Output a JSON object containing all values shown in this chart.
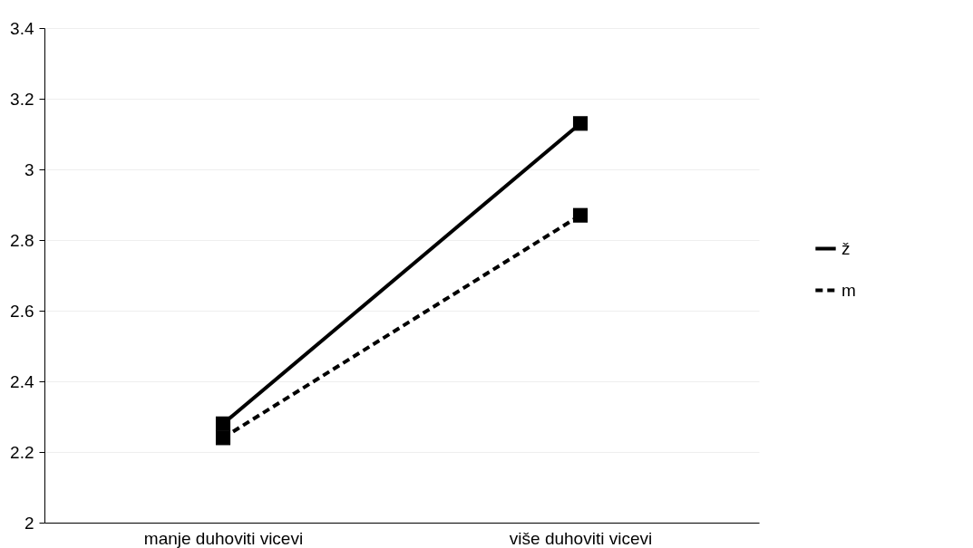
{
  "chart_data": {
    "type": "line",
    "categories": [
      "manje duhoviti vicevi",
      "više duhoviti vicevi"
    ],
    "series": [
      {
        "name": "ž",
        "color": "#000000",
        "line_style": "solid",
        "values": [
          2.28,
          3.13
        ]
      },
      {
        "name": "m",
        "color": "#000000",
        "line_style": "dashed",
        "values": [
          2.24,
          2.87
        ]
      }
    ],
    "ylim": [
      2,
      3.4
    ],
    "yticks": [
      2,
      2.2,
      2.4,
      2.6,
      2.8,
      3,
      3.2,
      3.4
    ],
    "grid": "y",
    "legend": "right",
    "marker": "square"
  }
}
